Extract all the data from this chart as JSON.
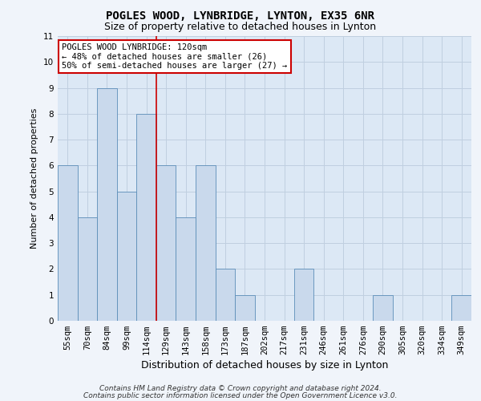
{
  "title": "POGLES WOOD, LYNBRIDGE, LYNTON, EX35 6NR",
  "subtitle": "Size of property relative to detached houses in Lynton",
  "xlabel": "Distribution of detached houses by size in Lynton",
  "ylabel": "Number of detached properties",
  "categories": [
    "55sqm",
    "70sqm",
    "84sqm",
    "99sqm",
    "114sqm",
    "129sqm",
    "143sqm",
    "158sqm",
    "173sqm",
    "187sqm",
    "202sqm",
    "217sqm",
    "231sqm",
    "246sqm",
    "261sqm",
    "276sqm",
    "290sqm",
    "305sqm",
    "320sqm",
    "334sqm",
    "349sqm"
  ],
  "values": [
    6,
    4,
    9,
    5,
    8,
    6,
    4,
    6,
    2,
    1,
    0,
    0,
    2,
    0,
    0,
    0,
    1,
    0,
    0,
    0,
    1
  ],
  "bar_color": "#c9d9ec",
  "bar_edge_color": "#5b8db8",
  "grid_color": "#c0cfe0",
  "background_color": "#dce8f5",
  "annotation_box_text": "POGLES WOOD LYNBRIDGE: 120sqm\n← 48% of detached houses are smaller (26)\n50% of semi-detached houses are larger (27) →",
  "annotation_box_color": "#ffffff",
  "annotation_box_edge_color": "#cc0000",
  "vline_color": "#cc0000",
  "vline_pos": 4.5,
  "ylim": [
    0,
    11
  ],
  "yticks": [
    0,
    1,
    2,
    3,
    4,
    5,
    6,
    7,
    8,
    9,
    10,
    11
  ],
  "footer_line1": "Contains HM Land Registry data © Crown copyright and database right 2024.",
  "footer_line2": "Contains public sector information licensed under the Open Government Licence v3.0.",
  "title_fontsize": 10,
  "subtitle_fontsize": 9,
  "xlabel_fontsize": 9,
  "ylabel_fontsize": 8,
  "tick_fontsize": 7.5,
  "annotation_fontsize": 7.5,
  "footer_fontsize": 6.5
}
